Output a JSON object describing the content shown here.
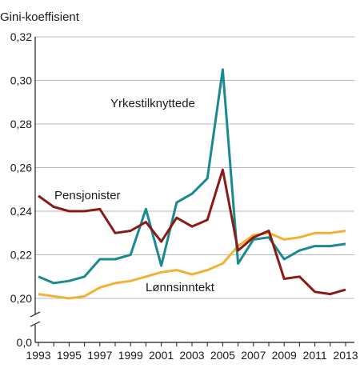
{
  "chart_data": {
    "type": "line",
    "ylabel": "Gini-koeffisient",
    "x": [
      1993,
      1994,
      1995,
      1996,
      1997,
      1998,
      1999,
      2000,
      2001,
      2002,
      2003,
      2004,
      2005,
      2006,
      2007,
      2008,
      2009,
      2010,
      2011,
      2012,
      2013
    ],
    "x_tick_labels": [
      "1993",
      "1995",
      "1997",
      "1999",
      "2001",
      "2003",
      "2005",
      "2007",
      "2009",
      "2011",
      "2013"
    ],
    "y_tick_labels": [
      "0,0",
      "0,20",
      "0,22",
      "0,24",
      "0,26",
      "0,28",
      "0,30",
      "0,32"
    ],
    "ylim": [
      0.2,
      0.32
    ],
    "y_axis_break": true,
    "grid": "horizontal",
    "series": [
      {
        "name": "Yrkestilknyttede",
        "color": "#1a8a92",
        "values": [
          0.21,
          0.207,
          0.208,
          0.21,
          0.218,
          0.218,
          0.22,
          0.241,
          0.215,
          0.244,
          0.248,
          0.255,
          0.305,
          0.216,
          0.227,
          0.228,
          0.218,
          0.222,
          0.224,
          0.224,
          0.225
        ]
      },
      {
        "name": "Pensjonister",
        "color": "#8b1a14",
        "values": [
          0.247,
          0.242,
          0.24,
          0.24,
          0.241,
          0.23,
          0.231,
          0.235,
          0.226,
          0.237,
          0.233,
          0.236,
          0.259,
          0.222,
          0.228,
          0.231,
          0.209,
          0.21,
          0.203,
          0.202,
          0.204
        ]
      },
      {
        "name": "Lønnsinntekt",
        "color": "#f2b134",
        "values": [
          0.202,
          0.201,
          0.2,
          0.201,
          0.205,
          0.207,
          0.208,
          0.21,
          0.212,
          0.213,
          0.211,
          0.213,
          0.216,
          0.224,
          0.229,
          0.23,
          0.227,
          0.228,
          0.23,
          0.23,
          0.231
        ]
      }
    ]
  }
}
